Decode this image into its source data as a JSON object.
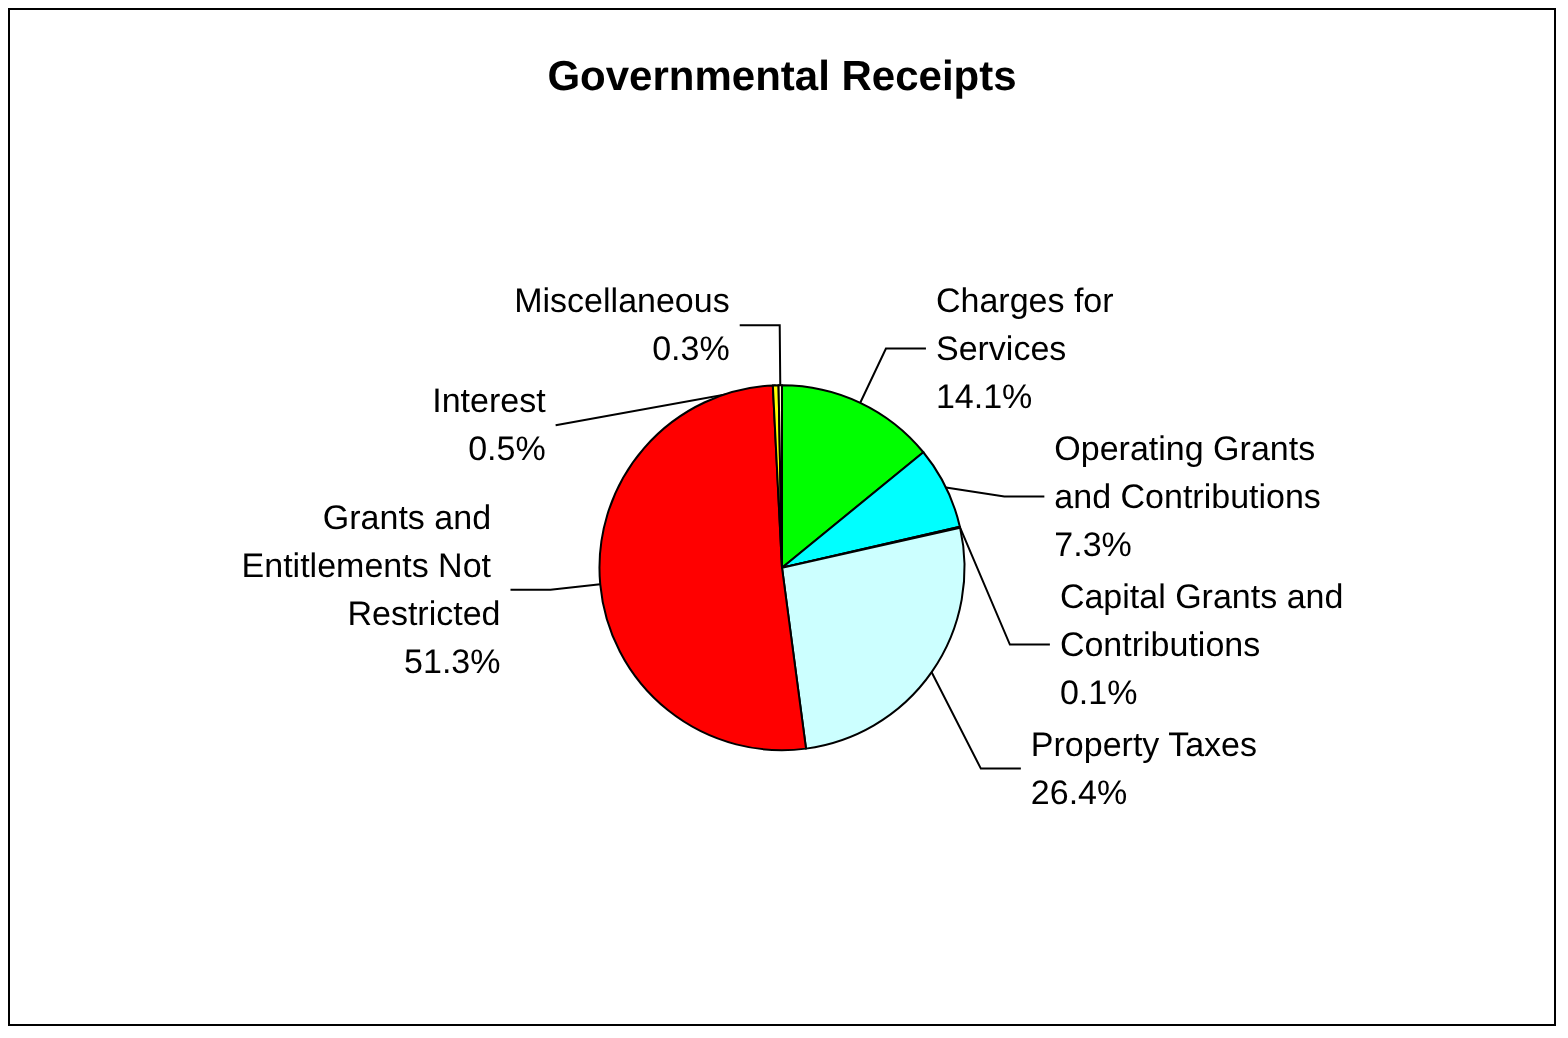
{
  "chart_data": {
    "type": "pie",
    "title": "Governmental Receipts",
    "categories": [
      "Charges for Services",
      "Operating Grants and Contributions",
      "Capital Grants and Contributions",
      "Property Taxes",
      "Grants and Entitlements Not Restricted",
      "Interest",
      "Miscellaneous"
    ],
    "values": [
      14.1,
      7.3,
      0.1,
      26.4,
      51.3,
      0.5,
      0.3
    ],
    "value_labels": [
      "14.1%",
      "7.3%",
      "0.1%",
      "26.4%",
      "51.3%",
      "0.5%",
      "0.3%"
    ],
    "colors": [
      "#00ff00",
      "#00ffff",
      "#993366",
      "#ccffff",
      "#ff0000",
      "#ffff00",
      "#ffffcc"
    ],
    "legend": false
  }
}
